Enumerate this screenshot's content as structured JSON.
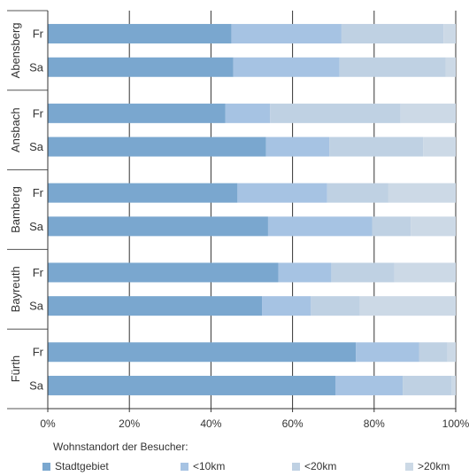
{
  "chart_data": {
    "type": "bar",
    "orientation": "horizontal",
    "stacked": true,
    "groups": [
      {
        "name": "Abensberg",
        "rows": [
          {
            "label": "Fr",
            "values": [
              45,
              27,
              25,
              3
            ]
          },
          {
            "label": "Sa",
            "values": [
              45.5,
              26,
              26,
              2.5
            ]
          }
        ]
      },
      {
        "name": "Ansbach",
        "rows": [
          {
            "label": "Fr",
            "values": [
              43.5,
              11,
              32,
              13.5
            ]
          },
          {
            "label": "Sa",
            "values": [
              53.5,
              15.5,
              23,
              8
            ]
          }
        ]
      },
      {
        "name": "Bamberg",
        "rows": [
          {
            "label": "Fr",
            "values": [
              46.5,
              22,
              15,
              16.5
            ]
          },
          {
            "label": "Sa",
            "values": [
              54,
              25.5,
              9.5,
              11
            ]
          }
        ]
      },
      {
        "name": "Bayreuth",
        "rows": [
          {
            "label": "Fr",
            "values": [
              56.5,
              13,
              15.5,
              15
            ]
          },
          {
            "label": "Sa",
            "values": [
              52.5,
              12,
              12,
              23.5
            ]
          }
        ]
      },
      {
        "name": "Fürth",
        "rows": [
          {
            "label": "Fr",
            "values": [
              75.5,
              15.5,
              7,
              2
            ]
          },
          {
            "label": "Sa",
            "values": [
              70.5,
              16.5,
              12,
              1
            ]
          }
        ]
      }
    ],
    "series": [
      {
        "name": "Stadtgebiet",
        "color": "#7aa7cf"
      },
      {
        "name": "<10km",
        "color": "#a6c3e3"
      },
      {
        "name": "<20km",
        "color": "#bfd1e3"
      },
      {
        "name": ">20km",
        "color": "#ccd9e6"
      }
    ],
    "xlim": [
      0,
      100
    ],
    "x_ticks": [
      "0%",
      "20%",
      "40%",
      "60%",
      "80%",
      "100%"
    ],
    "grid": true,
    "legend_title": "Wohnstandort der Besucher:",
    "legend_placement": "bottom"
  }
}
